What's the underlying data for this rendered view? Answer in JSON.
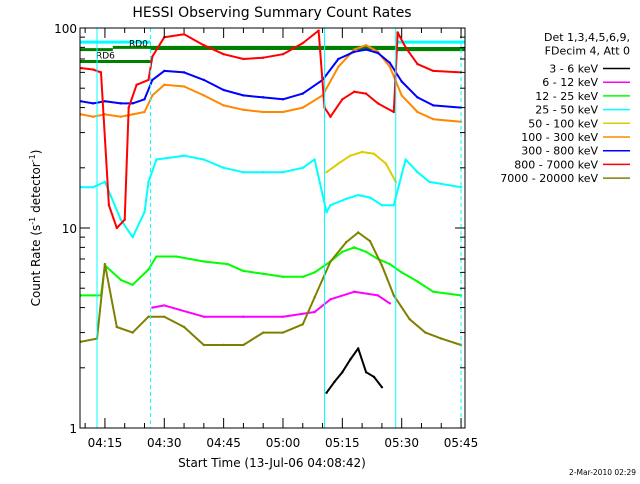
{
  "chart_data": {
    "type": "line",
    "title": "HESSI Observing Summary Count Rates",
    "xlabel": "Start Time (13-Jul-06 04:08:42)",
    "ylabel_main": "Count Rate (s",
    "ylabel_sup1": "-1",
    "ylabel_mid": " detector",
    "ylabel_sup2": "-1",
    "ylabel_end": ")",
    "yscale": "log",
    "ylim": [
      1,
      100
    ],
    "xlim": [
      "04:08:42",
      "05:46:00"
    ],
    "y_tick_labels": [
      "1",
      "10",
      "100"
    ],
    "x_tick_labels": [
      "04:15",
      "04:30",
      "04:45",
      "05:00",
      "05:15",
      "05:30",
      "05:45"
    ],
    "grid": false,
    "legend_position": "right",
    "legend_header": [
      "Det 1,3,4,5,6,9,",
      "FDecim 4, Att 0"
    ],
    "footer_date": "2-Mar-2010 02:29",
    "annotations": [
      "RD0",
      "RD6"
    ],
    "event_lines_solid": [
      "04:13:00",
      "05:10:30",
      "05:28:30"
    ],
    "event_lines_dashed": [
      "04:26:30",
      "05:45:00"
    ],
    "series": [
      {
        "name": "3 - 6 keV",
        "color": "#000000",
        "points": [
          [
            "05:11:00",
            1.5
          ],
          [
            "05:13:00",
            1.7
          ],
          [
            "05:15:00",
            1.9
          ],
          [
            "05:17:00",
            2.2
          ],
          [
            "05:19:00",
            2.5
          ],
          [
            "05:21:00",
            1.9
          ],
          [
            "05:23:00",
            1.8
          ],
          [
            "05:25:00",
            1.6
          ]
        ]
      },
      {
        "name": "6 - 12 keV",
        "color": "#ff00ff",
        "points": [
          [
            "04:27:00",
            4.0
          ],
          [
            "04:30:00",
            4.1
          ],
          [
            "04:40:00",
            3.6
          ],
          [
            "04:50:00",
            3.6
          ],
          [
            "05:00:00",
            3.6
          ],
          [
            "05:08:00",
            3.8
          ],
          [
            "05:12:00",
            4.4
          ],
          [
            "05:18:00",
            4.8
          ],
          [
            "05:24:00",
            4.6
          ],
          [
            "05:27:00",
            4.2
          ]
        ]
      },
      {
        "name": "12 - 25 keV",
        "color": "#00ff00",
        "points": [
          [
            "04:09:00",
            4.6
          ],
          [
            "04:12:00",
            4.6
          ],
          [
            "04:14:00",
            4.6
          ],
          [
            "04:15:00",
            6.5
          ],
          [
            "04:19:00",
            5.5
          ],
          [
            "04:22:00",
            5.2
          ],
          [
            "04:26:00",
            6.2
          ],
          [
            "04:28:00",
            7.2
          ],
          [
            "04:33:00",
            7.2
          ],
          [
            "04:40:00",
            6.8
          ],
          [
            "04:46:00",
            6.6
          ],
          [
            "04:50:00",
            6.1
          ],
          [
            "04:55:00",
            5.9
          ],
          [
            "05:00:00",
            5.7
          ],
          [
            "05:05:00",
            5.7
          ],
          [
            "05:08:00",
            6.0
          ],
          [
            "05:12:00",
            6.8
          ],
          [
            "05:15:00",
            7.6
          ],
          [
            "05:18:00",
            8.0
          ],
          [
            "05:21:00",
            7.6
          ],
          [
            "05:24:00",
            7.0
          ],
          [
            "05:27:00",
            6.6
          ],
          [
            "05:30:00",
            6.0
          ],
          [
            "05:34:00",
            5.4
          ],
          [
            "05:38:00",
            4.8
          ],
          [
            "05:45:00",
            4.6
          ]
        ]
      },
      {
        "name": "25 - 50 keV",
        "color": "#00ffff",
        "points": [
          [
            "04:09:00",
            16
          ],
          [
            "04:12:00",
            16
          ],
          [
            "04:15:00",
            17
          ],
          [
            "04:19:00",
            11
          ],
          [
            "04:22:00",
            9
          ],
          [
            "04:25:00",
            12
          ],
          [
            "04:26:00",
            17
          ],
          [
            "04:28:00",
            22
          ],
          [
            "04:35:00",
            23
          ],
          [
            "04:40:00",
            22
          ],
          [
            "04:45:00",
            20
          ],
          [
            "04:50:00",
            19
          ],
          [
            "04:55:00",
            19
          ],
          [
            "05:00:00",
            19
          ],
          [
            "05:05:00",
            20
          ],
          [
            "05:08:00",
            22
          ],
          [
            "05:11:00",
            12
          ],
          [
            "05:12:00",
            13
          ],
          [
            "05:16:00",
            14
          ],
          [
            "05:19:00",
            14.6
          ],
          [
            "05:22:00",
            14.2
          ],
          [
            "05:25:00",
            13
          ],
          [
            "05:28:00",
            13
          ],
          [
            "05:31:00",
            22
          ],
          [
            "05:34:00",
            19
          ],
          [
            "05:37:00",
            17
          ],
          [
            "05:45:00",
            16
          ]
        ]
      },
      {
        "name": "50 - 100 keV",
        "color": "#ddcc00",
        "points": [
          [
            "05:11:00",
            19
          ],
          [
            "05:14:00",
            21
          ],
          [
            "05:17:00",
            23
          ],
          [
            "05:20:00",
            24
          ],
          [
            "05:23:00",
            23.5
          ],
          [
            "05:26:00",
            21
          ],
          [
            "05:28:30",
            17
          ]
        ]
      },
      {
        "name": "100 - 300 keV",
        "color": "#ff8800",
        "points": [
          [
            "04:09:00",
            37
          ],
          [
            "04:12:00",
            36
          ],
          [
            "04:15:00",
            37
          ],
          [
            "04:19:00",
            36
          ],
          [
            "04:22:00",
            37
          ],
          [
            "04:25:00",
            38
          ],
          [
            "04:27:00",
            46
          ],
          [
            "04:30:00",
            52
          ],
          [
            "04:35:00",
            51
          ],
          [
            "04:40:00",
            46
          ],
          [
            "04:45:00",
            41
          ],
          [
            "04:50:00",
            39
          ],
          [
            "04:55:00",
            38
          ],
          [
            "05:00:00",
            38
          ],
          [
            "05:05:00",
            40
          ],
          [
            "05:10:00",
            46
          ],
          [
            "05:14:00",
            64
          ],
          [
            "05:18:00",
            78
          ],
          [
            "05:21:00",
            82
          ],
          [
            "05:24:00",
            76
          ],
          [
            "05:27:00",
            64
          ],
          [
            "05:30:00",
            46
          ],
          [
            "05:34:00",
            38
          ],
          [
            "05:38:00",
            35
          ],
          [
            "05:45:00",
            34
          ]
        ]
      },
      {
        "name": "300 - 800 keV",
        "color": "#0000ff",
        "points": [
          [
            "04:09:00",
            43
          ],
          [
            "04:12:00",
            42
          ],
          [
            "04:15:00",
            43
          ],
          [
            "04:19:00",
            42
          ],
          [
            "04:22:00",
            42
          ],
          [
            "04:25:00",
            44
          ],
          [
            "04:27:00",
            55
          ],
          [
            "04:30:00",
            61
          ],
          [
            "04:35:00",
            60
          ],
          [
            "04:40:00",
            55
          ],
          [
            "04:45:00",
            49
          ],
          [
            "04:50:00",
            46
          ],
          [
            "04:55:00",
            45
          ],
          [
            "05:00:00",
            44
          ],
          [
            "05:05:00",
            47
          ],
          [
            "05:10:00",
            55
          ],
          [
            "05:14:00",
            70
          ],
          [
            "05:18:00",
            76
          ],
          [
            "05:21:00",
            78
          ],
          [
            "05:24:00",
            75
          ],
          [
            "05:27:00",
            67
          ],
          [
            "05:30:00",
            54
          ],
          [
            "05:34:00",
            45
          ],
          [
            "05:38:00",
            41
          ],
          [
            "05:45:00",
            40
          ]
        ]
      },
      {
        "name": "800 - 7000 keV",
        "color": "#ff0000",
        "points": [
          [
            "04:09:00",
            63
          ],
          [
            "04:12:00",
            62
          ],
          [
            "04:14:00",
            60
          ],
          [
            "04:16:00",
            13
          ],
          [
            "04:18:00",
            10
          ],
          [
            "04:20:00",
            11
          ],
          [
            "04:21:00",
            40
          ],
          [
            "04:23:00",
            52
          ],
          [
            "04:26:00",
            55
          ],
          [
            "04:27:00",
            72
          ],
          [
            "04:30:00",
            90
          ],
          [
            "04:35:00",
            93
          ],
          [
            "04:40:00",
            82
          ],
          [
            "04:45:00",
            74
          ],
          [
            "04:50:00",
            70
          ],
          [
            "04:55:00",
            71
          ],
          [
            "05:00:00",
            74
          ],
          [
            "05:05:00",
            84
          ],
          [
            "05:09:00",
            97
          ],
          [
            "05:10:30",
            40
          ],
          [
            "05:12:00",
            36
          ],
          [
            "05:15:00",
            44
          ],
          [
            "05:18:00",
            48
          ],
          [
            "05:21:00",
            47
          ],
          [
            "05:24:00",
            42
          ],
          [
            "05:28:00",
            38
          ],
          [
            "05:29:00",
            95
          ],
          [
            "05:31:00",
            80
          ],
          [
            "05:34:00",
            66
          ],
          [
            "05:38:00",
            61
          ],
          [
            "05:45:00",
            60
          ]
        ]
      },
      {
        "name": "7000 - 20000 keV",
        "color": "#808000",
        "points": [
          [
            "04:09:00",
            2.7
          ],
          [
            "04:13:00",
            2.8
          ],
          [
            "04:15:00",
            6.6
          ],
          [
            "04:18:00",
            3.2
          ],
          [
            "04:22:00",
            3.0
          ],
          [
            "04:26:00",
            3.6
          ],
          [
            "04:30:00",
            3.6
          ],
          [
            "04:35:00",
            3.2
          ],
          [
            "04:40:00",
            2.6
          ],
          [
            "04:45:00",
            2.6
          ],
          [
            "04:50:00",
            2.6
          ],
          [
            "04:55:00",
            3.0
          ],
          [
            "05:00:00",
            3.0
          ],
          [
            "05:05:00",
            3.3
          ],
          [
            "05:08:00",
            4.5
          ],
          [
            "05:12:00",
            6.8
          ],
          [
            "05:16:00",
            8.5
          ],
          [
            "05:19:00",
            9.5
          ],
          [
            "05:22:00",
            8.6
          ],
          [
            "05:25:00",
            6.5
          ],
          [
            "05:28:00",
            4.6
          ],
          [
            "05:32:00",
            3.5
          ],
          [
            "05:36:00",
            3.0
          ],
          [
            "05:40:00",
            2.8
          ],
          [
            "05:45:00",
            2.6
          ]
        ]
      }
    ],
    "step_lines": [
      {
        "name": "RD0",
        "color": "#008000",
        "segments": [
          [
            "04:08:42",
            "04:17:00",
            78
          ],
          [
            "04:17:00",
            "05:28:30",
            80
          ],
          [
            "05:28:30",
            "05:46:00",
            78
          ]
        ]
      },
      {
        "name": "RD6",
        "color": "#008000",
        "segments": [
          [
            "04:08:42",
            "04:26:30",
            68
          ],
          [
            "04:26:30",
            "05:46:00",
            79
          ]
        ]
      },
      {
        "name": "level-top",
        "color": "#00ffff",
        "segments": [
          [
            "04:08:42",
            "04:26:30",
            85
          ],
          [
            "05:29:00",
            "05:46:00",
            85
          ]
        ]
      }
    ]
  }
}
